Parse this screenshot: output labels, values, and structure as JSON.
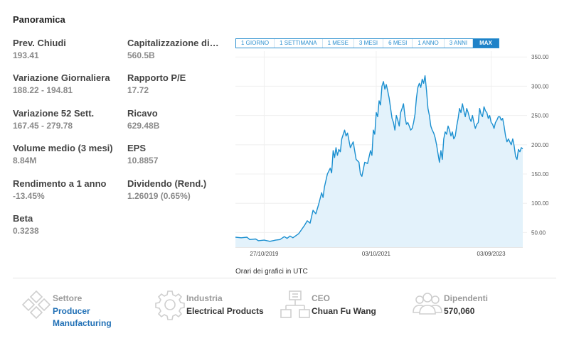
{
  "panel": {
    "title": "Panoramica"
  },
  "stats_left": [
    {
      "label": "Prev. Chiudi",
      "value": "193.41"
    },
    {
      "label": "Variazione Giornaliera",
      "value": "188.22 - 194.81"
    },
    {
      "label": "Variazione 52 Sett.",
      "value": "167.45 - 279.78"
    },
    {
      "label": "Volume medio (3 mesi)",
      "value": "8.84M"
    },
    {
      "label": "Rendimento a 1 anno",
      "value": "-13.45%"
    },
    {
      "label": "Beta",
      "value": "0.3238"
    }
  ],
  "stats_right": [
    {
      "label": "Capitalizzazione di ...",
      "value": "560.5B"
    },
    {
      "label": "Rapporto P/E",
      "value": "17.72"
    },
    {
      "label": "Ricavo",
      "value": "629.48B"
    },
    {
      "label": "EPS",
      "value": "10.8857"
    },
    {
      "label": "Dividendo (Rend.)",
      "value": "1.26019 (0.65%)"
    }
  ],
  "range_tabs": [
    "1 GIORNO",
    "1 SETTIMANA",
    "1 MESE",
    "3 MESI",
    "6 MESI",
    "1 ANNO",
    "3 ANNI",
    "MAX"
  ],
  "active_tab": "MAX",
  "chart_note": "Orari dei grafici in UTC",
  "info": {
    "sector": {
      "label": "Settore",
      "value_line1": "Producer",
      "value_line2": "Manufacturing"
    },
    "industry": {
      "label": "Industria",
      "value": "Electrical Products"
    },
    "ceo": {
      "label": "CEO",
      "value": "Chuan Fu Wang"
    },
    "employees": {
      "label": "Dipendenti",
      "value": "570,060"
    }
  },
  "colors": {
    "line": "#1a8fd0",
    "fill": "#e3f2fb",
    "accent": "#1f82c8",
    "link": "#1f6fb5"
  },
  "chart_data": {
    "type": "area",
    "ylim": [
      25,
      360
    ],
    "y_ticks": [
      "350.00",
      "300.00",
      "250.00",
      "200.00",
      "150.00",
      "100.00",
      "50.00"
    ],
    "y_tick_values": [
      350,
      300,
      250,
      200,
      150,
      100,
      50
    ],
    "x_ticks": [
      {
        "label": "27/10/2019",
        "t": 0.1
      },
      {
        "label": "03/10/2021",
        "t": 0.49
      },
      {
        "label": "03/09/2023",
        "t": 0.89
      }
    ],
    "series": [
      {
        "points": [
          [
            0.0,
            42
          ],
          [
            0.02,
            41
          ],
          [
            0.04,
            42
          ],
          [
            0.05,
            38
          ],
          [
            0.07,
            39
          ],
          [
            0.08,
            36
          ],
          [
            0.1,
            37
          ],
          [
            0.12,
            35
          ],
          [
            0.14,
            37
          ],
          [
            0.155,
            38
          ],
          [
            0.17,
            43
          ],
          [
            0.18,
            40
          ],
          [
            0.19,
            44
          ],
          [
            0.2,
            41
          ],
          [
            0.22,
            48
          ],
          [
            0.24,
            62
          ],
          [
            0.25,
            70
          ],
          [
            0.26,
            66
          ],
          [
            0.27,
            88
          ],
          [
            0.28,
            82
          ],
          [
            0.29,
            99
          ],
          [
            0.3,
            118
          ],
          [
            0.305,
            110
          ],
          [
            0.31,
            128
          ],
          [
            0.32,
            150
          ],
          [
            0.33,
            160
          ],
          [
            0.335,
            152
          ],
          [
            0.34,
            190
          ],
          [
            0.345,
            178
          ],
          [
            0.35,
            195
          ],
          [
            0.355,
            182
          ],
          [
            0.36,
            192
          ],
          [
            0.365,
            188
          ],
          [
            0.37,
            210
          ],
          [
            0.38,
            225
          ],
          [
            0.385,
            215
          ],
          [
            0.39,
            220
          ],
          [
            0.4,
            195
          ],
          [
            0.41,
            205
          ],
          [
            0.42,
            175
          ],
          [
            0.43,
            170
          ],
          [
            0.435,
            150
          ],
          [
            0.44,
            146
          ],
          [
            0.45,
            170
          ],
          [
            0.46,
            168
          ],
          [
            0.47,
            190
          ],
          [
            0.475,
            182
          ],
          [
            0.48,
            225
          ],
          [
            0.485,
            218
          ],
          [
            0.49,
            255
          ],
          [
            0.495,
            248
          ],
          [
            0.5,
            275
          ],
          [
            0.505,
            268
          ],
          [
            0.51,
            300
          ],
          [
            0.515,
            308
          ],
          [
            0.52,
            295
          ],
          [
            0.525,
            303
          ],
          [
            0.53,
            292
          ],
          [
            0.535,
            280
          ],
          [
            0.54,
            262
          ],
          [
            0.545,
            245
          ],
          [
            0.55,
            238
          ],
          [
            0.555,
            225
          ],
          [
            0.56,
            250
          ],
          [
            0.565,
            242
          ],
          [
            0.57,
            232
          ],
          [
            0.575,
            255
          ],
          [
            0.58,
            262
          ],
          [
            0.585,
            270
          ],
          [
            0.59,
            248
          ],
          [
            0.595,
            235
          ],
          [
            0.6,
            238
          ],
          [
            0.605,
            232
          ],
          [
            0.61,
            225
          ],
          [
            0.615,
            228
          ],
          [
            0.62,
            238
          ],
          [
            0.625,
            252
          ],
          [
            0.63,
            280
          ],
          [
            0.635,
            298
          ],
          [
            0.64,
            305
          ],
          [
            0.645,
            298
          ],
          [
            0.65,
            312
          ],
          [
            0.655,
            305
          ],
          [
            0.66,
            318
          ],
          [
            0.665,
            292
          ],
          [
            0.67,
            262
          ],
          [
            0.675,
            250
          ],
          [
            0.68,
            232
          ],
          [
            0.685,
            225
          ],
          [
            0.69,
            220
          ],
          [
            0.695,
            212
          ],
          [
            0.7,
            200
          ],
          [
            0.705,
            185
          ],
          [
            0.71,
            170
          ],
          [
            0.715,
            190
          ],
          [
            0.72,
            175
          ],
          [
            0.725,
            210
          ],
          [
            0.73,
            222
          ],
          [
            0.735,
            218
          ],
          [
            0.74,
            232
          ],
          [
            0.745,
            225
          ],
          [
            0.75,
            215
          ],
          [
            0.755,
            222
          ],
          [
            0.76,
            210
          ],
          [
            0.765,
            215
          ],
          [
            0.77,
            232
          ],
          [
            0.775,
            245
          ],
          [
            0.78,
            262
          ],
          [
            0.785,
            255
          ],
          [
            0.79,
            270
          ],
          [
            0.795,
            258
          ],
          [
            0.8,
            248
          ],
          [
            0.805,
            262
          ],
          [
            0.81,
            255
          ],
          [
            0.815,
            245
          ],
          [
            0.82,
            240
          ],
          [
            0.825,
            250
          ],
          [
            0.83,
            238
          ],
          [
            0.835,
            228
          ],
          [
            0.84,
            235
          ],
          [
            0.845,
            238
          ],
          [
            0.85,
            262
          ],
          [
            0.855,
            252
          ],
          [
            0.86,
            248
          ],
          [
            0.865,
            265
          ],
          [
            0.87,
            258
          ],
          [
            0.875,
            255
          ],
          [
            0.88,
            245
          ],
          [
            0.885,
            250
          ],
          [
            0.89,
            238
          ],
          [
            0.895,
            235
          ],
          [
            0.9,
            228
          ],
          [
            0.905,
            238
          ],
          [
            0.91,
            242
          ],
          [
            0.915,
            248
          ],
          [
            0.92,
            248
          ],
          [
            0.925,
            242
          ],
          [
            0.93,
            245
          ],
          [
            0.935,
            232
          ],
          [
            0.94,
            215
          ],
          [
            0.945,
            205
          ],
          [
            0.95,
            210
          ],
          [
            0.955,
            205
          ],
          [
            0.96,
            200
          ],
          [
            0.965,
            210
          ],
          [
            0.97,
            198
          ],
          [
            0.975,
            180
          ],
          [
            0.98,
            175
          ],
          [
            0.985,
            192
          ],
          [
            0.99,
            188
          ],
          [
            0.995,
            195
          ],
          [
            1.0,
            193
          ]
        ]
      }
    ],
    "grid": true
  }
}
